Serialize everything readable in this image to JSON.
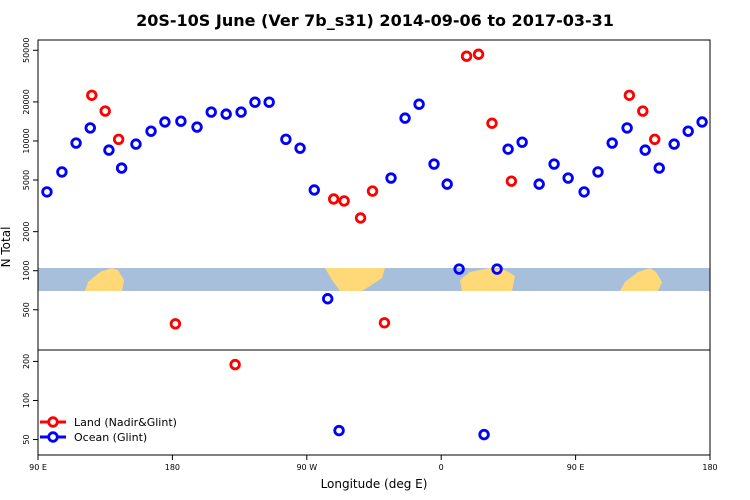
{
  "chart_data": {
    "type": "scatter",
    "title": "20S-10S June (Ver 7b_s31)   2014-09-06 to 2017-03-31",
    "x_label": "Longitude (deg E)",
    "y_label": "N Total",
    "y_log": true,
    "xlim": [
      90,
      540
    ],
    "xticks": [
      {
        "value": 90,
        "label": "90 E"
      },
      180,
      {
        "value": 270,
        "label": "90 W"
      },
      {
        "value": 360,
        "label": "0"
      },
      {
        "value": 450,
        "label": "90 E"
      },
      {
        "value": 540,
        "label": "180"
      }
    ],
    "ylim": [
      38,
      60000
    ],
    "yticks": [
      50,
      100,
      200,
      500,
      1000,
      2000,
      5000,
      10000,
      20000,
      50000
    ],
    "legend": "lower left",
    "series": [
      {
        "name": "Land (Nadir&Glint)",
        "color": "#ff0000",
        "x": [
          126,
          135,
          144,
          182,
          222,
          288,
          295,
          306,
          314,
          322,
          377,
          385,
          394,
          407,
          486,
          495,
          503
        ],
        "values": [
          22500,
          17000,
          10300,
          390,
          189,
          3570,
          3450,
          2550,
          4110,
          397,
          45000,
          46600,
          13700,
          4900,
          22500,
          17000,
          10300
        ]
      },
      {
        "name": "Ocean (Glint)",
        "color": "#0000ff",
        "x": [
          96,
          106,
          115.5,
          125,
          137.5,
          146,
          155.6,
          165.7,
          175,
          185.7,
          196.5,
          206,
          216,
          226,
          235.3,
          244.8,
          256,
          265.5,
          275,
          284,
          291.6,
          326.4,
          335.8,
          345.2,
          355.2,
          364,
          372,
          388.7,
          397.4,
          404.8,
          414.2,
          425.6,
          435.6,
          445,
          455.7,
          465,
          474.5,
          484.5,
          496.6,
          506,
          516,
          525.4,
          534.7
        ],
        "values": [
          4050,
          5770,
          9640,
          12600,
          8500,
          6180,
          9460,
          11900,
          14000,
          14200,
          12800,
          16700,
          16100,
          16700,
          19900,
          19900,
          10300,
          8800,
          4190,
          608,
          58.6,
          5180,
          15000,
          19200,
          6640,
          4650,
          1030,
          54.6,
          1030,
          8650,
          9790,
          4650,
          6640,
          5180,
          4050,
          5770,
          9640,
          12600,
          8500,
          6180,
          9460,
          11900,
          14000
        ]
      }
    ]
  }
}
